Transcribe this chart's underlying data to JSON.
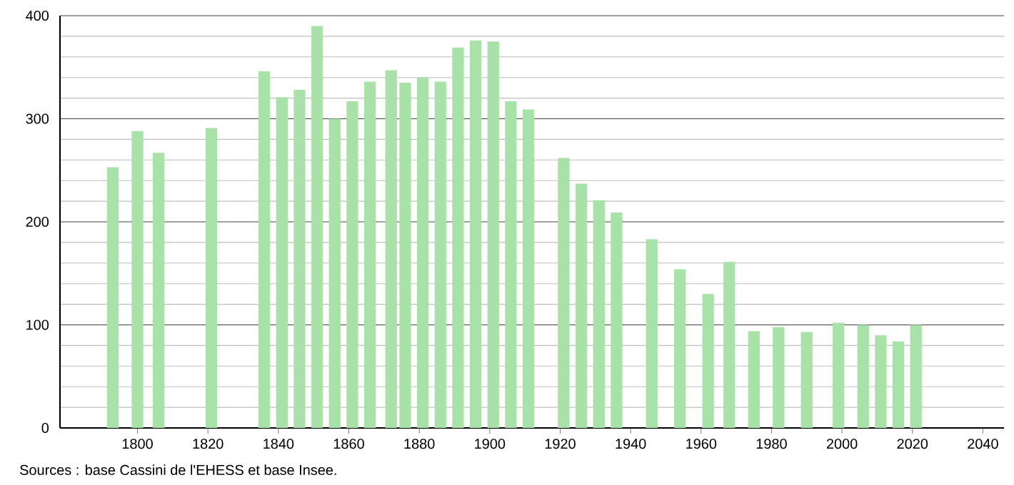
{
  "chart_data": {
    "type": "bar",
    "x": [
      1793,
      1800,
      1806,
      1821,
      1836,
      1841,
      1846,
      1851,
      1856,
      1861,
      1866,
      1872,
      1876,
      1881,
      1886,
      1891,
      1896,
      1901,
      1906,
      1911,
      1921,
      1926,
      1931,
      1936,
      1946,
      1954,
      1962,
      1968,
      1975,
      1982,
      1990,
      1999,
      2006,
      2011,
      2016,
      2021
    ],
    "values": [
      253,
      288,
      267,
      291,
      346,
      321,
      328,
      390,
      300,
      317,
      336,
      347,
      335,
      340,
      336,
      369,
      376,
      375,
      317,
      309,
      262,
      237,
      221,
      209,
      183,
      154,
      130,
      161,
      94,
      98,
      93,
      102,
      100,
      90,
      84,
      100
    ],
    "color": "#a8e2a8",
    "xlim": [
      1778,
      2046
    ],
    "ylim": [
      0,
      400
    ],
    "xticks": [
      1800,
      1820,
      1840,
      1860,
      1880,
      1900,
      1920,
      1940,
      1960,
      1980,
      2000,
      2020,
      2040
    ],
    "yticks": [
      0,
      100,
      200,
      300,
      400
    ],
    "grid": "y",
    "annotations": [
      "Sources : base Cassini de l'EHESS et base Insee."
    ]
  }
}
